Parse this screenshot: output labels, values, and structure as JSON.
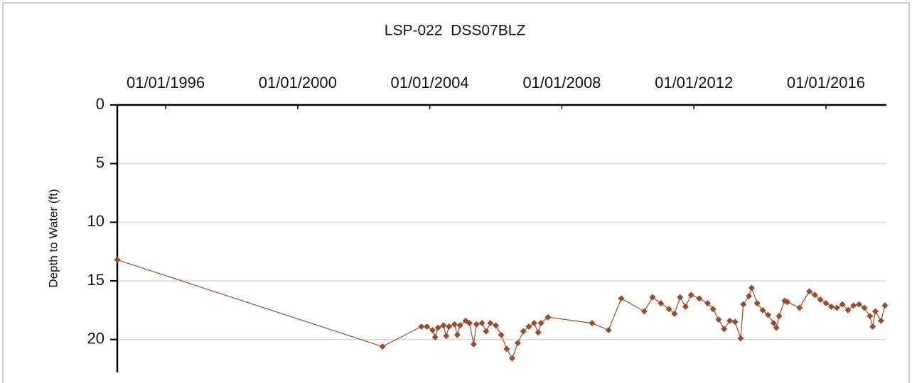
{
  "chart_data": {
    "type": "line",
    "title": "LSP-022  DSS07BLZ",
    "y_label": "Depth to Water (ft)",
    "y_inverted": true,
    "grid": true,
    "color": "#9c4a2a",
    "ylim": [
      0,
      22.8
    ],
    "yticks": [
      0,
      5,
      10,
      15,
      20
    ],
    "xlim": [
      "1994-07-15",
      "2017-10-31"
    ],
    "xticks": [
      {
        "value": "1996-01-01",
        "label": "01/01/1996"
      },
      {
        "value": "2000-01-01",
        "label": "01/01/2000"
      },
      {
        "value": "2004-01-01",
        "label": "01/01/2004"
      },
      {
        "value": "2008-01-01",
        "label": "01/01/2008"
      },
      {
        "value": "2012-01-01",
        "label": "01/01/2012"
      },
      {
        "value": "2016-01-01",
        "label": "01/01/2016"
      }
    ],
    "x": [
      "1994-07-15",
      "2002-07-26",
      "2003-10-01",
      "2003-12-01",
      "2004-02-01",
      "2004-03-01",
      "2004-04-01",
      "2004-06-01",
      "2004-07-01",
      "2004-08-01",
      "2004-10-01",
      "2004-11-01",
      "2004-12-01",
      "2005-02-01",
      "2005-03-15",
      "2005-05-01",
      "2005-06-01",
      "2005-08-01",
      "2005-09-15",
      "2005-11-01",
      "2006-01-01",
      "2006-03-01",
      "2006-05-01",
      "2006-07-01",
      "2006-09-01",
      "2006-11-01",
      "2007-01-01",
      "2007-03-01",
      "2007-04-15",
      "2007-05-15",
      "2007-08-01",
      "2008-12-01",
      "2009-06-01",
      "2009-10-20",
      "2010-07-01",
      "2010-10-01",
      "2011-01-01",
      "2011-04-01",
      "2011-06-01",
      "2011-08-01",
      "2011-10-01",
      "2011-12-01",
      "2012-03-01",
      "2012-06-01",
      "2012-08-01",
      "2012-10-01",
      "2012-12-01",
      "2013-02-01",
      "2013-04-01",
      "2013-06-01",
      "2013-07-01",
      "2013-09-01",
      "2013-10-01",
      "2013-12-01",
      "2014-02-01",
      "2014-04-01",
      "2014-06-01",
      "2014-07-01",
      "2014-08-01",
      "2014-10-01",
      "2014-11-01",
      "2015-03-15",
      "2015-07-01",
      "2015-09-01",
      "2015-11-01",
      "2016-01-01",
      "2016-03-01",
      "2016-05-01",
      "2016-07-01",
      "2016-09-01",
      "2016-11-01",
      "2017-01-01",
      "2017-03-01",
      "2017-05-01",
      "2017-06-01",
      "2017-07-01",
      "2017-09-01",
      "2017-10-15"
    ],
    "values": [
      13.2,
      20.6,
      18.9,
      18.9,
      19.2,
      19.8,
      19.0,
      18.8,
      19.7,
      18.9,
      18.7,
      19.6,
      18.8,
      18.4,
      18.6,
      20.4,
      18.7,
      18.6,
      19.3,
      18.6,
      18.8,
      19.6,
      20.8,
      21.6,
      20.3,
      19.3,
      18.9,
      18.6,
      19.4,
      18.6,
      18.1,
      18.6,
      19.2,
      16.5,
      17.6,
      16.4,
      16.9,
      17.4,
      17.8,
      16.4,
      17.2,
      16.2,
      16.5,
      16.9,
      17.4,
      18.3,
      19.1,
      18.4,
      18.5,
      19.9,
      17.0,
      16.3,
      15.6,
      16.9,
      17.5,
      17.9,
      18.6,
      19.0,
      18.0,
      16.7,
      16.8,
      17.3,
      15.9,
      16.2,
      16.6,
      16.9,
      17.2,
      17.3,
      17.0,
      17.5,
      17.1,
      17.0,
      17.3,
      18.0,
      18.9,
      17.6,
      18.4,
      17.1
    ]
  }
}
